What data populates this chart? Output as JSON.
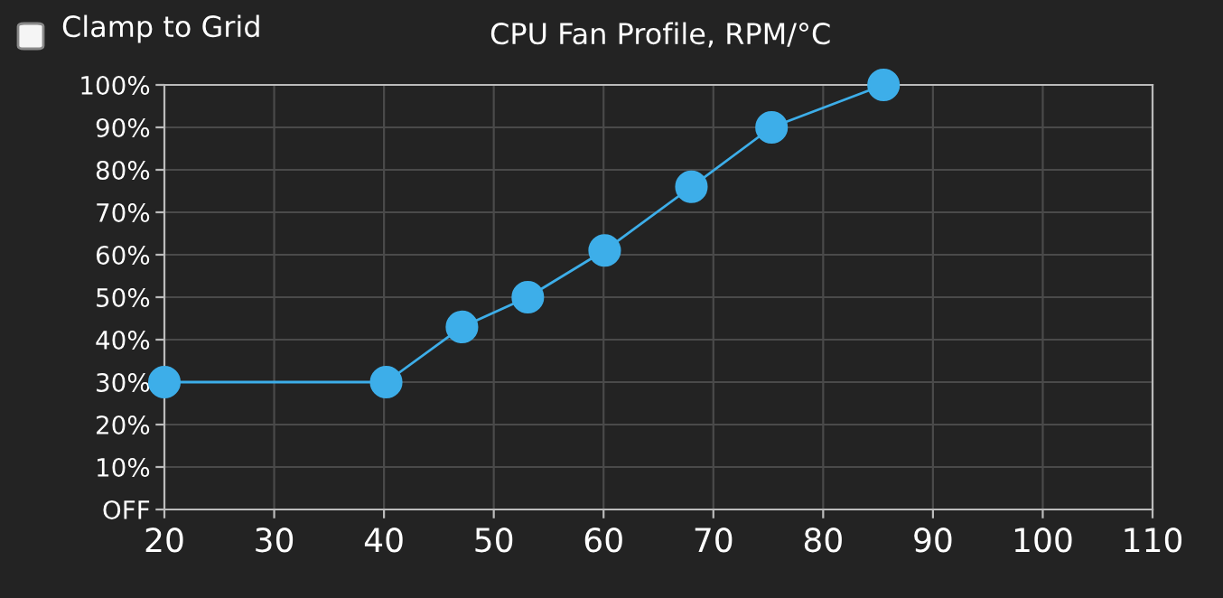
{
  "chart_data": {
    "type": "line",
    "title": "CPU Fan Profile, RPM/°C",
    "x": [
      20,
      40.2,
      47.1,
      53.1,
      60.1,
      68,
      75.3,
      85.5
    ],
    "series": [
      {
        "color": "#3daee9",
        "values": [
          30,
          30,
          43,
          50,
          61,
          76,
          90,
          100
        ]
      }
    ],
    "xlim": [
      20,
      110
    ],
    "xticks": [
      20,
      30,
      40,
      50,
      60,
      70,
      80,
      90,
      100,
      110
    ],
    "ylim": [
      0,
      100
    ],
    "yticks": [
      {
        "value": 0,
        "label": "OFF"
      },
      {
        "value": 10,
        "label": "10%"
      },
      {
        "value": 20,
        "label": "20%"
      },
      {
        "value": 30,
        "label": "30%"
      },
      {
        "value": 40,
        "label": "40%"
      },
      {
        "value": 50,
        "label": "50%"
      },
      {
        "value": 60,
        "label": "60%"
      },
      {
        "value": 70,
        "label": "70%"
      },
      {
        "value": 80,
        "label": "80%"
      },
      {
        "value": 90,
        "label": "90%"
      },
      {
        "value": 100,
        "label": "100%"
      }
    ],
    "grid": true,
    "marker": "circle",
    "line_style": "solid",
    "annotations": [
      "Clamp to Grid"
    ]
  }
}
